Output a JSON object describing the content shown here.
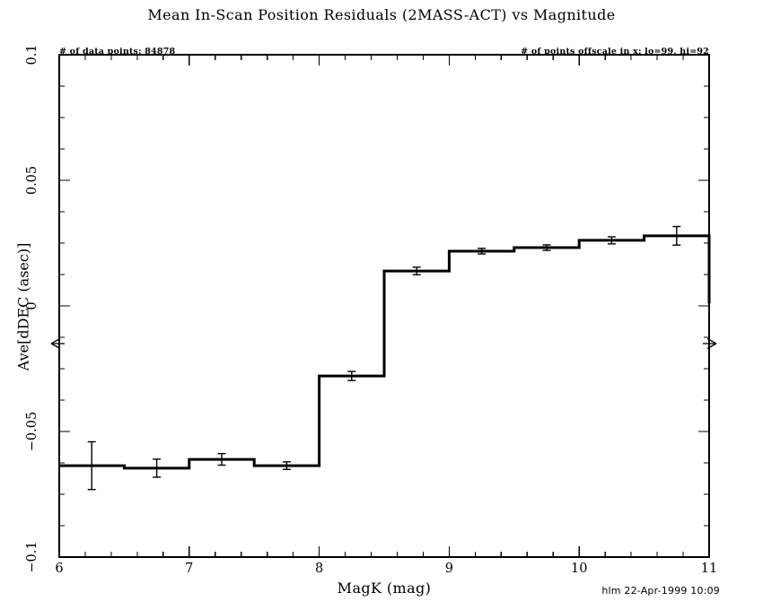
{
  "title": "Mean In-Scan Position Residuals (2MASS-ACT) vs Magnitude",
  "annotations": {
    "data_points": "# of data points: 84878",
    "offscale": "# of points offscale in x: lo=99, hi=92",
    "credit": "hlm 22-Apr-1999 10:09"
  },
  "chart_data": {
    "type": "line",
    "subtype": "step-histogram-with-error-bars",
    "title": "Mean In-Scan Position Residuals (2MASS-ACT) vs Magnitude",
    "xlabel": "MagK (mag)",
    "ylabel": "Ave[dDEC (asec)]",
    "xlim": [
      6,
      11
    ],
    "ylim": [
      -0.1,
      0.1
    ],
    "grid": "off",
    "x_major_ticks": [
      6,
      7,
      8,
      9,
      10,
      11
    ],
    "x_tick_labels": [
      "6",
      "7",
      "8",
      "9",
      "10",
      "11"
    ],
    "x_minor_step": 0.2,
    "y_major_ticks": [
      -0.1,
      -0.05,
      0,
      0.05,
      0.1
    ],
    "y_tick_labels": [
      "−0.1",
      "−0.05",
      "0",
      "0.05",
      "0.1"
    ],
    "y_minor_step": 0.0125,
    "bins": [
      {
        "x_lo": 6.0,
        "x_hi": 6.5,
        "mean": -0.0636,
        "err": 0.0095
      },
      {
        "x_lo": 6.5,
        "x_hi": 7.0,
        "mean": -0.0646,
        "err": 0.0036
      },
      {
        "x_lo": 7.0,
        "x_hi": 7.5,
        "mean": -0.0611,
        "err": 0.0023
      },
      {
        "x_lo": 7.5,
        "x_hi": 8.0,
        "mean": -0.0636,
        "err": 0.0015
      },
      {
        "x_lo": 8.0,
        "x_hi": 8.5,
        "mean": -0.0279,
        "err": 0.0018
      },
      {
        "x_lo": 8.5,
        "x_hi": 9.0,
        "mean": 0.0139,
        "err": 0.0015
      },
      {
        "x_lo": 9.0,
        "x_hi": 9.5,
        "mean": 0.0218,
        "err": 0.0011
      },
      {
        "x_lo": 9.5,
        "x_hi": 10.0,
        "mean": 0.0232,
        "err": 0.0011
      },
      {
        "x_lo": 10.0,
        "x_hi": 10.5,
        "mean": 0.0261,
        "err": 0.0014
      },
      {
        "x_lo": 10.5,
        "x_hi": 11.0,
        "mean": 0.0279,
        "err": 0.0037
      }
    ],
    "right_edge_close_to": 0.001,
    "offscale_arrow_y": -0.015,
    "line_color": "#000000",
    "background": "#ffffff"
  }
}
